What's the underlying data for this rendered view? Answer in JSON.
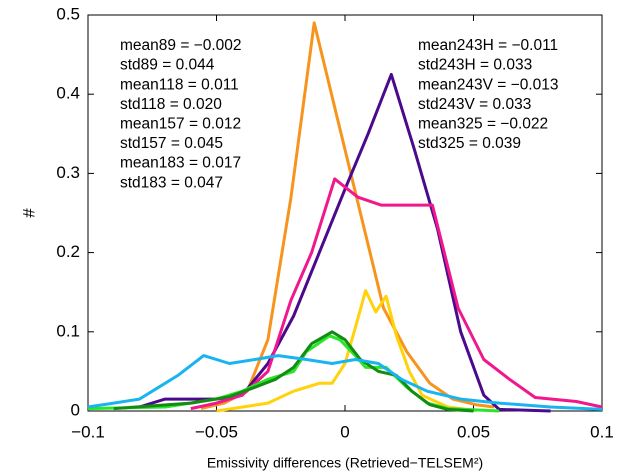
{
  "chart_data": {
    "type": "line",
    "xlabel": "Emissivity differences (Retrieved−TELSEM²)",
    "ylabel": "#",
    "xlim": [
      -0.1,
      0.1
    ],
    "xticks": [
      {
        "value": -0.1,
        "label": "−0.1"
      },
      {
        "value": -0.05,
        "label": "−0.05"
      },
      0,
      0.05,
      0.1
    ],
    "ylim": [
      0,
      0.5
    ],
    "yticks": [
      0,
      0.1,
      0.2,
      0.3,
      0.4,
      0.5
    ],
    "series": [
      {
        "color": "#f7941d",
        "x": [
          -0.056,
          -0.047,
          -0.038,
          -0.03,
          -0.021,
          -0.012,
          -0.003,
          0.006,
          0.015,
          0.024,
          0.033,
          0.042,
          0.051,
          0.058
        ],
        "values": [
          0.003,
          0.01,
          0.025,
          0.09,
          0.27,
          0.49,
          0.37,
          0.25,
          0.13,
          0.075,
          0.035,
          0.015,
          0.008,
          0.005
        ]
      },
      {
        "color": "#ffd20a",
        "x": [
          -0.05,
          -0.03,
          -0.02,
          -0.01,
          -0.005,
          0.0,
          0.004,
          0.008,
          0.012,
          0.016,
          0.02,
          0.025,
          0.03,
          0.04,
          0.05
        ],
        "values": [
          0.0,
          0.01,
          0.025,
          0.035,
          0.035,
          0.06,
          0.105,
          0.152,
          0.125,
          0.145,
          0.095,
          0.05,
          0.02,
          0.005,
          0.001
        ]
      },
      {
        "color": "#4b0a8c",
        "x": [
          -0.08,
          -0.07,
          -0.05,
          -0.04,
          -0.03,
          -0.02,
          -0.01,
          0.0,
          0.009,
          0.018,
          0.027,
          0.036,
          0.045,
          0.054,
          0.06,
          0.08
        ],
        "values": [
          0.005,
          0.015,
          0.015,
          0.02,
          0.06,
          0.12,
          0.2,
          0.28,
          0.35,
          0.425,
          0.33,
          0.23,
          0.1,
          0.02,
          0.002,
          0.0
        ]
      },
      {
        "color": "#f0188c",
        "x": [
          -0.06,
          -0.05,
          -0.04,
          -0.03,
          -0.021,
          -0.013,
          -0.004,
          0.005,
          0.014,
          0.024,
          0.034,
          0.044,
          0.054,
          0.064,
          0.074,
          0.09,
          0.1
        ],
        "values": [
          0.003,
          0.01,
          0.02,
          0.05,
          0.14,
          0.2,
          0.293,
          0.27,
          0.26,
          0.26,
          0.26,
          0.13,
          0.065,
          0.04,
          0.017,
          0.012,
          0.005
        ]
      },
      {
        "color": "#28e628",
        "x": [
          -0.1,
          -0.07,
          -0.05,
          -0.04,
          -0.03,
          -0.02,
          -0.015,
          -0.006,
          -0.002,
          0.004,
          0.008,
          0.016,
          0.024,
          0.032,
          0.04,
          0.06
        ],
        "values": [
          0.003,
          0.005,
          0.015,
          0.025,
          0.04,
          0.05,
          0.075,
          0.095,
          0.09,
          0.07,
          0.055,
          0.055,
          0.03,
          0.01,
          0.003,
          0.0
        ]
      },
      {
        "color": "#148c14",
        "x": [
          -0.09,
          -0.06,
          -0.045,
          -0.035,
          -0.027,
          -0.02,
          -0.013,
          -0.005,
          0.0,
          0.006,
          0.013,
          0.02,
          0.026,
          0.033,
          0.04,
          0.05
        ],
        "values": [
          0.003,
          0.01,
          0.018,
          0.03,
          0.04,
          0.055,
          0.085,
          0.1,
          0.09,
          0.065,
          0.05,
          0.045,
          0.025,
          0.008,
          0.002,
          0.0
        ]
      },
      {
        "color": "#19b4f0",
        "x": [
          -0.1,
          -0.09,
          -0.08,
          -0.075,
          -0.065,
          -0.055,
          -0.045,
          -0.035,
          -0.026,
          -0.015,
          -0.005,
          0.004,
          0.013,
          0.022,
          0.032,
          0.045,
          0.06,
          0.08,
          0.1
        ],
        "values": [
          0.005,
          0.01,
          0.015,
          0.025,
          0.045,
          0.07,
          0.06,
          0.065,
          0.07,
          0.065,
          0.06,
          0.065,
          0.06,
          0.04,
          0.025,
          0.015,
          0.01,
          0.005,
          0.002
        ]
      }
    ],
    "annotations": [
      {
        "text": "mean89 = −0.002",
        "color": "#f7941d"
      },
      {
        "text": "std89 = 0.044",
        "color": "#f7941d"
      },
      {
        "text": "mean118 = 0.011",
        "color": "#ffd20a"
      },
      {
        "text": "std118 = 0.020",
        "color": "#ffd20a"
      },
      {
        "text": "mean157 = 0.012",
        "color": "#4b0a8c"
      },
      {
        "text": "std157 = 0.045",
        "color": "#4b0a8c"
      },
      {
        "text": "mean183 = 0.017",
        "color": "#f0188c"
      },
      {
        "text": "std183 = 0.047",
        "color": "#f0188c"
      },
      {
        "text": "mean243H = −0.011",
        "color": "#28e628"
      },
      {
        "text": "std243H = 0.033",
        "color": "#28e628"
      },
      {
        "text": "mean243V = −0.013",
        "color": "#148c14"
      },
      {
        "text": "std243V = 0.033",
        "color": "#148c14"
      },
      {
        "text": "mean325 = −0.022",
        "color": "#19b4f0"
      },
      {
        "text": "std325 = 0.039",
        "color": "#19b4f0"
      }
    ]
  }
}
